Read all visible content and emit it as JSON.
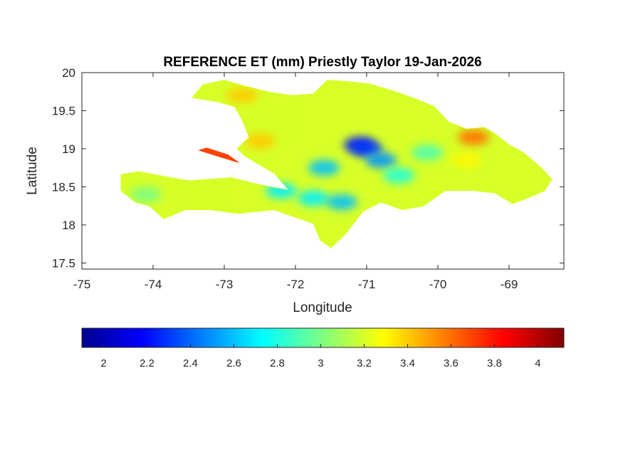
{
  "chart_data": {
    "type": "heatmap",
    "title": "REFERENCE ET (mm) Priestly Taylor 19-Jan-2026",
    "xlabel": "Longitude",
    "ylabel": "Latitude",
    "xlim": [
      -75,
      -68.23
    ],
    "ylim": [
      17.42,
      20
    ],
    "x_ticks": [
      -75,
      -74,
      -73,
      -72,
      -71,
      -70,
      -69
    ],
    "x_tick_labels": [
      "-75",
      "-74",
      "-73",
      "-72",
      "-71",
      "-70",
      "-69"
    ],
    "y_ticks": [
      17.5,
      18,
      18.5,
      19,
      19.5,
      20
    ],
    "y_tick_labels": [
      "17.5",
      "18",
      "18.5",
      "19",
      "19.5",
      "20"
    ],
    "colormap": "jet",
    "colorbar": {
      "orientation": "horizontal",
      "range": [
        1.9,
        4.12
      ],
      "ticks": [
        2,
        2.2,
        2.4,
        2.6,
        2.8,
        3,
        3.2,
        3.4,
        3.6,
        3.8,
        4
      ],
      "tick_labels": [
        "2",
        "2.2",
        "2.4",
        "2.6",
        "2.8",
        "3",
        "3.2",
        "3.4",
        "3.6",
        "3.8",
        "4"
      ]
    },
    "regions": [
      {
        "name": "",
        "value": 3.2,
        "outline": [
          [
            -74.45,
            18.66
          ],
          [
            -74.2,
            18.7
          ],
          [
            -73.8,
            18.63
          ],
          [
            -73.5,
            18.58
          ],
          [
            -73.2,
            18.6
          ],
          [
            -72.9,
            18.62
          ],
          [
            -72.6,
            18.55
          ],
          [
            -72.35,
            18.5
          ],
          [
            -72.1,
            18.46
          ],
          [
            -72.3,
            18.68
          ],
          [
            -72.45,
            18.76
          ],
          [
            -72.7,
            18.9
          ],
          [
            -72.82,
            19.0
          ],
          [
            -72.65,
            19.15
          ],
          [
            -72.75,
            19.38
          ],
          [
            -72.85,
            19.55
          ],
          [
            -73.1,
            19.62
          ],
          [
            -73.45,
            19.67
          ],
          [
            -73.3,
            19.84
          ],
          [
            -73.0,
            19.9
          ],
          [
            -72.7,
            19.82
          ],
          [
            -72.35,
            19.74
          ],
          [
            -72.05,
            19.7
          ],
          [
            -71.75,
            19.72
          ],
          [
            -71.55,
            19.9
          ],
          [
            -71.25,
            19.88
          ],
          [
            -70.95,
            19.85
          ],
          [
            -70.6,
            19.75
          ],
          [
            -70.3,
            19.65
          ],
          [
            -70.05,
            19.55
          ],
          [
            -69.85,
            19.35
          ],
          [
            -69.6,
            19.26
          ],
          [
            -69.35,
            19.28
          ],
          [
            -69.2,
            19.2
          ],
          [
            -69.0,
            19.05
          ],
          [
            -68.8,
            18.95
          ],
          [
            -68.55,
            18.75
          ],
          [
            -68.4,
            18.6
          ],
          [
            -68.5,
            18.45
          ],
          [
            -68.75,
            18.35
          ],
          [
            -68.95,
            18.28
          ],
          [
            -69.2,
            18.42
          ],
          [
            -69.5,
            18.45
          ],
          [
            -69.9,
            18.45
          ],
          [
            -70.2,
            18.25
          ],
          [
            -70.5,
            18.2
          ],
          [
            -70.8,
            18.3
          ],
          [
            -71.05,
            18.18
          ],
          [
            -71.3,
            17.88
          ],
          [
            -71.5,
            17.7
          ],
          [
            -71.65,
            17.8
          ],
          [
            -71.75,
            18.02
          ],
          [
            -72.0,
            18.1
          ],
          [
            -72.3,
            18.2
          ],
          [
            -72.8,
            18.15
          ],
          [
            -73.2,
            18.2
          ],
          [
            -73.55,
            18.2
          ],
          [
            -73.85,
            18.08
          ],
          [
            -74.05,
            18.25
          ],
          [
            -74.25,
            18.3
          ],
          [
            -74.45,
            18.45
          ]
        ]
      },
      {
        "name": "",
        "value": 3.7,
        "outline": [
          [
            -73.35,
            18.98
          ],
          [
            -73.05,
            18.89
          ],
          [
            -72.8,
            18.82
          ],
          [
            -72.95,
            18.92
          ],
          [
            -73.25,
            19.01
          ]
        ]
      }
    ],
    "hotspots": [
      {
        "lon": -71.1,
        "lat": 19.05,
        "value": 2.2
      },
      {
        "lon": -71.0,
        "lat": 19.0,
        "value": 2.3
      },
      {
        "lon": -70.8,
        "lat": 18.85,
        "value": 2.5
      },
      {
        "lon": -71.6,
        "lat": 18.75,
        "value": 2.6
      },
      {
        "lon": -71.75,
        "lat": 18.35,
        "value": 2.7
      },
      {
        "lon": -71.35,
        "lat": 18.3,
        "value": 2.6
      },
      {
        "lon": -72.2,
        "lat": 18.45,
        "value": 2.7
      },
      {
        "lon": -70.55,
        "lat": 18.65,
        "value": 2.8
      },
      {
        "lon": -70.15,
        "lat": 18.95,
        "value": 2.9
      },
      {
        "lon": -74.1,
        "lat": 18.4,
        "value": 3.0
      },
      {
        "lon": -73.3,
        "lat": 18.4,
        "value": 3.2
      },
      {
        "lon": -72.25,
        "lat": 19.35,
        "value": 3.2
      },
      {
        "lon": -72.75,
        "lat": 19.7,
        "value": 3.4
      },
      {
        "lon": -69.6,
        "lat": 18.85,
        "value": 3.3
      },
      {
        "lon": -72.5,
        "lat": 19.1,
        "value": 3.4
      },
      {
        "lon": -69.5,
        "lat": 19.15,
        "value": 3.6
      }
    ]
  },
  "colors": {
    "frame": "#262626",
    "ocean": "#ffffff"
  }
}
